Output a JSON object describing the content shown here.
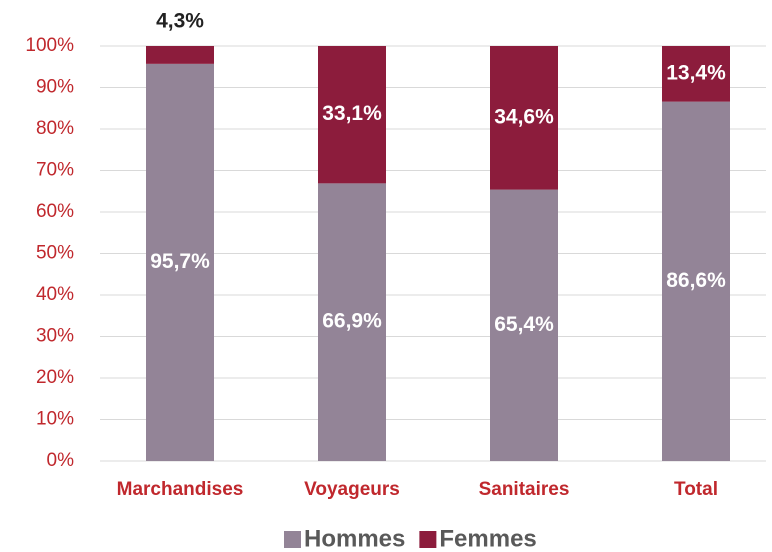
{
  "chart_data": {
    "type": "stacked_bar",
    "categories": [
      "Marchandises",
      "Voyageurs",
      "Sanitaires",
      "Total"
    ],
    "series": [
      {
        "name": "Hommes",
        "color": "#938497",
        "values": [
          95.7,
          66.9,
          65.4,
          86.6
        ],
        "value_labels": [
          "95,7%",
          "66,9%",
          "65,4%",
          "86,6%"
        ]
      },
      {
        "name": "Femmes",
        "color": "#8c1c3c",
        "values": [
          4.3,
          33.1,
          34.6,
          13.4
        ],
        "value_labels": [
          "4,3%",
          "33,1%",
          "34,6%",
          "13,4%"
        ]
      }
    ],
    "ylim": [
      0,
      100
    ],
    "yticks": [
      {
        "value": 0,
        "label": "0%"
      },
      {
        "value": 10,
        "label": "10%"
      },
      {
        "value": 20,
        "label": "20%"
      },
      {
        "value": 30,
        "label": "30%"
      },
      {
        "value": 40,
        "label": "40%"
      },
      {
        "value": 50,
        "label": "50%"
      },
      {
        "value": 60,
        "label": "60%"
      },
      {
        "value": 70,
        "label": "70%"
      },
      {
        "value": 80,
        "label": "80%"
      },
      {
        "value": 90,
        "label": "90%"
      },
      {
        "value": 100,
        "label": "100%"
      }
    ],
    "grid": true,
    "legend": "bottom"
  }
}
